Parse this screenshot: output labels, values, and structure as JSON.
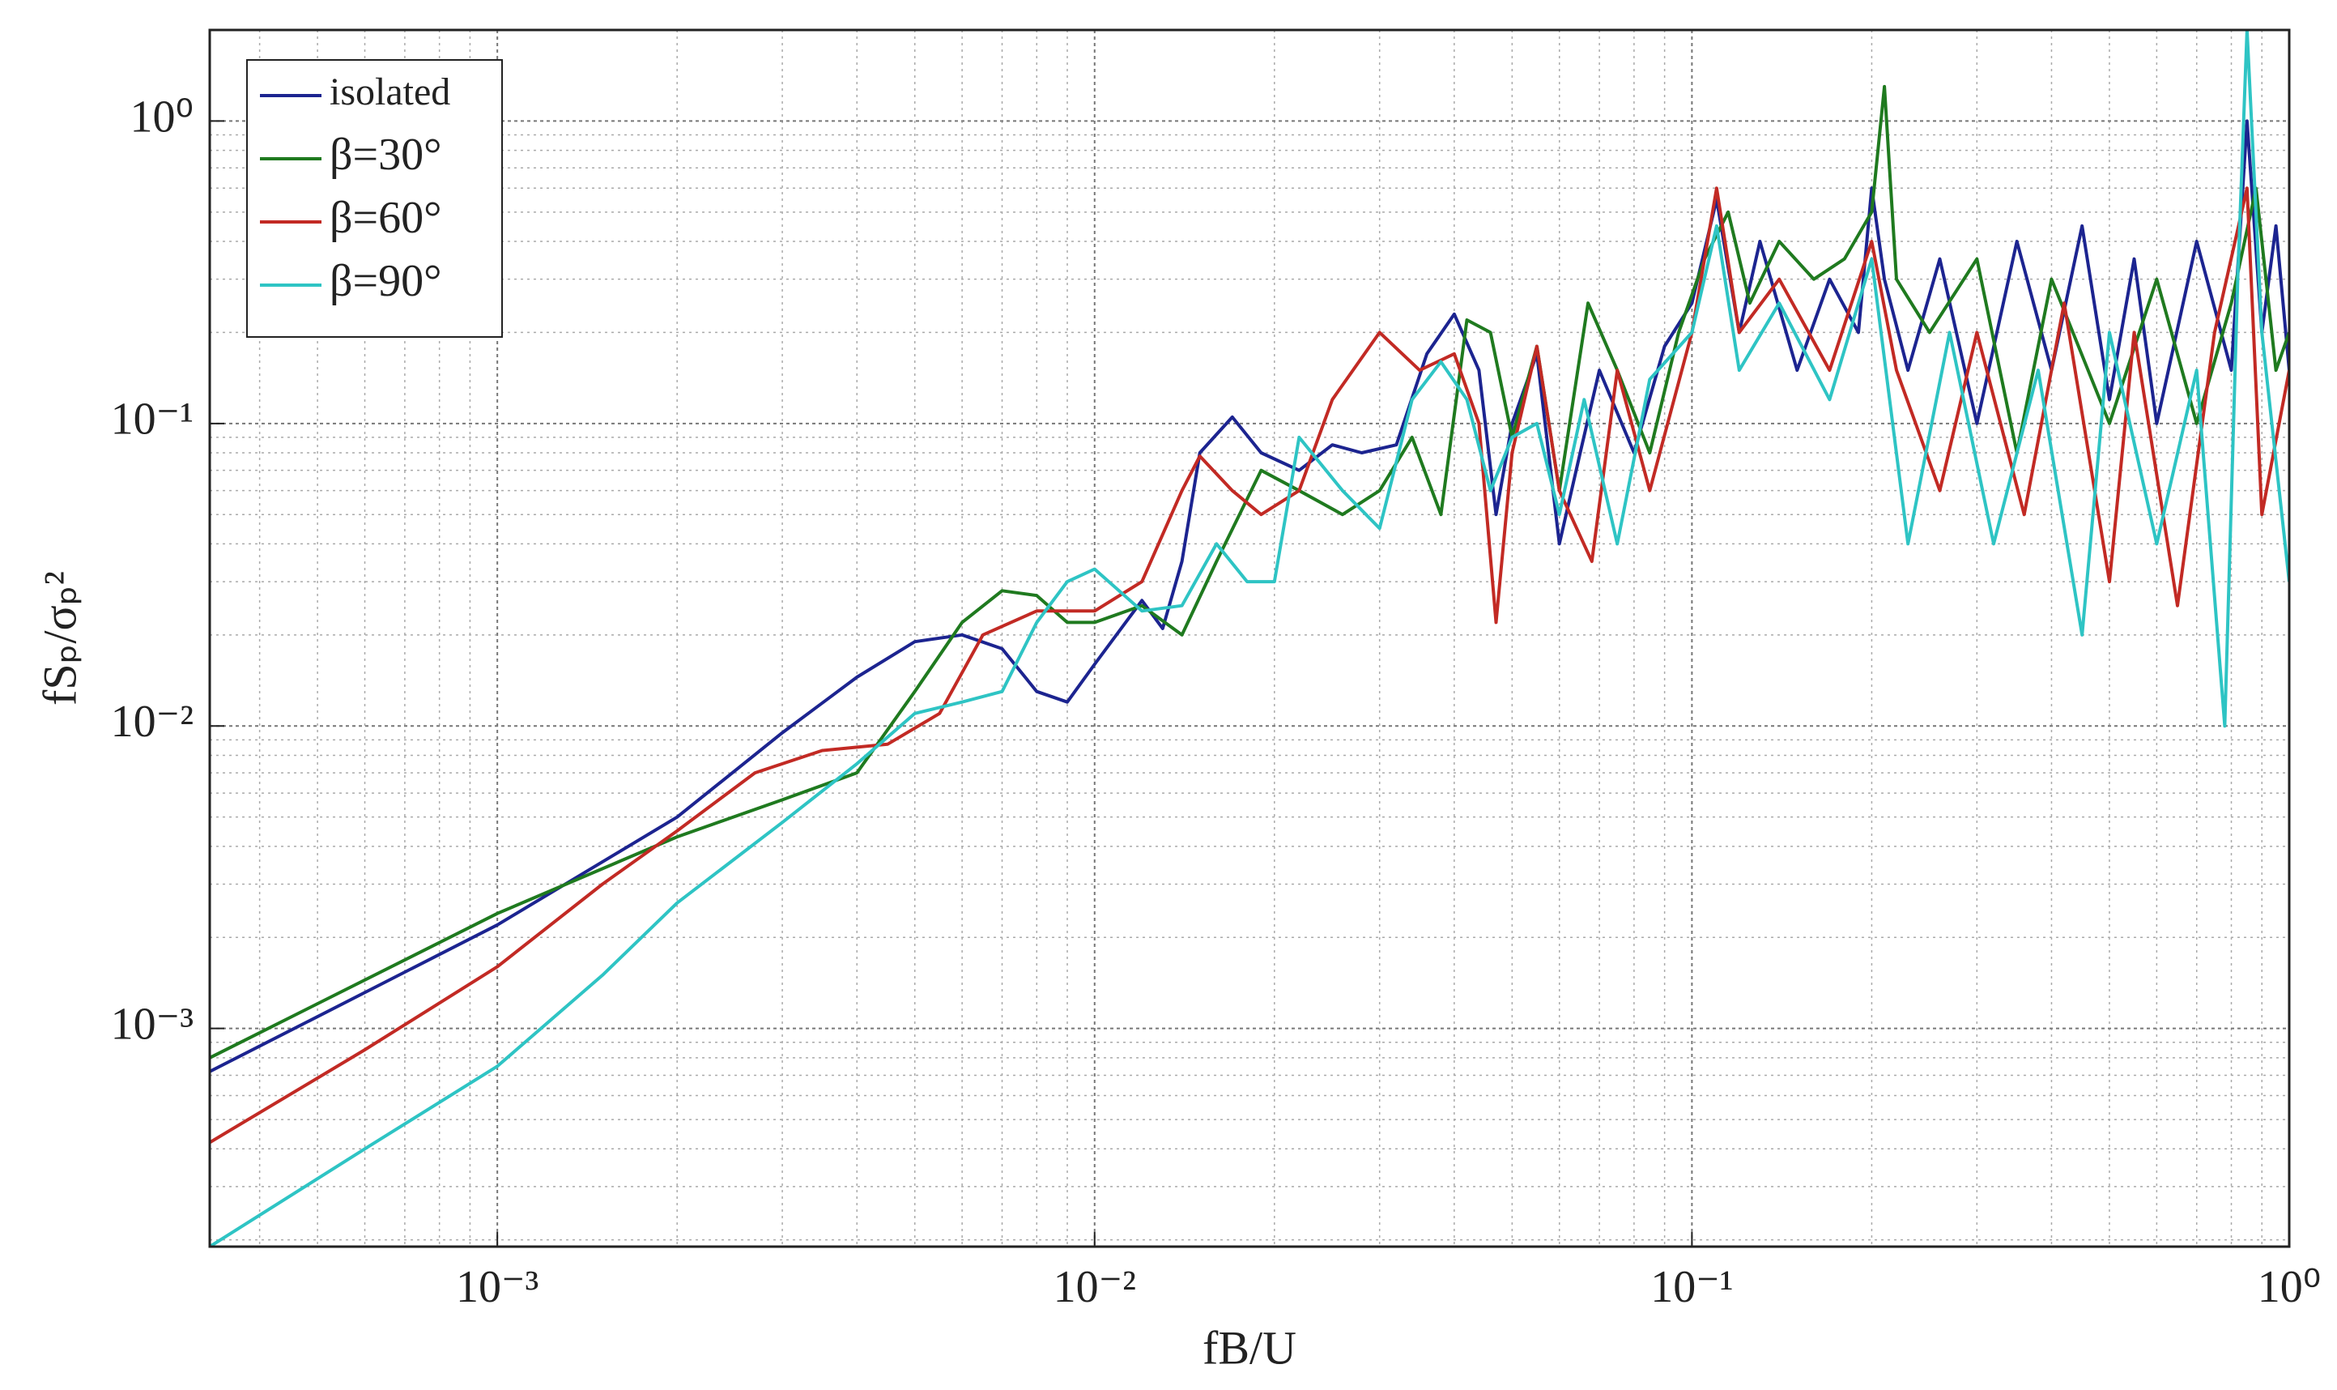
{
  "chart_data": {
    "type": "line",
    "xlabel": "fB/U",
    "ylabel": "fSₚ/σₚ²",
    "xscale": "log",
    "yscale": "log",
    "xlim": [
      0.00033,
      1
    ],
    "ylim": [
      0.00019,
      2
    ],
    "xticks": [
      {
        "value": 0.001,
        "label": "10⁻³"
      },
      {
        "value": 0.01,
        "label": "10⁻²"
      },
      {
        "value": 0.1,
        "label": "10⁻¹"
      },
      {
        "value": 1,
        "label": "10⁰"
      }
    ],
    "yticks": [
      {
        "value": 0.001,
        "label": "10⁻³"
      },
      {
        "value": 0.01,
        "label": "10⁻²"
      },
      {
        "value": 0.1,
        "label": "10⁻¹"
      },
      {
        "value": 1,
        "label": "10⁰"
      }
    ],
    "grid": true,
    "minor_grid": true,
    "legend": "upper left",
    "series": [
      {
        "name": "isolated",
        "color": "#1c2490",
        "x": [
          0.00033,
          0.001,
          0.002,
          0.003,
          0.004,
          0.005,
          0.006,
          0.007,
          0.008,
          0.009,
          0.01,
          0.012,
          0.013,
          0.014,
          0.015,
          0.017,
          0.019,
          0.022,
          0.025,
          0.028,
          0.032,
          0.036,
          0.04,
          0.044,
          0.047,
          0.05,
          0.055,
          0.06,
          0.065,
          0.07,
          0.08,
          0.09,
          0.1,
          0.11,
          0.12,
          0.13,
          0.15,
          0.17,
          0.19,
          0.2,
          0.21,
          0.23,
          0.26,
          0.3,
          0.35,
          0.4,
          0.45,
          0.5,
          0.55,
          0.6,
          0.7,
          0.8,
          0.85,
          0.9,
          0.95,
          1.0
        ],
        "values": [
          0.00072,
          0.0022,
          0.005,
          0.0095,
          0.0145,
          0.019,
          0.02,
          0.018,
          0.013,
          0.012,
          0.016,
          0.026,
          0.021,
          0.035,
          0.08,
          0.105,
          0.08,
          0.07,
          0.085,
          0.08,
          0.085,
          0.17,
          0.23,
          0.15,
          0.05,
          0.1,
          0.17,
          0.04,
          0.08,
          0.15,
          0.08,
          0.18,
          0.25,
          0.55,
          0.2,
          0.4,
          0.15,
          0.3,
          0.2,
          0.6,
          0.3,
          0.15,
          0.35,
          0.1,
          0.4,
          0.15,
          0.45,
          0.12,
          0.35,
          0.1,
          0.4,
          0.15,
          1.0,
          0.2,
          0.45,
          0.15
        ]
      },
      {
        "name": "β=30°",
        "color": "#1f7a1f",
        "x": [
          0.00033,
          0.001,
          0.002,
          0.003,
          0.004,
          0.005,
          0.006,
          0.007,
          0.008,
          0.009,
          0.01,
          0.012,
          0.014,
          0.016,
          0.019,
          0.022,
          0.026,
          0.03,
          0.034,
          0.038,
          0.042,
          0.046,
          0.05,
          0.055,
          0.06,
          0.067,
          0.075,
          0.085,
          0.095,
          0.105,
          0.115,
          0.125,
          0.14,
          0.16,
          0.18,
          0.2,
          0.21,
          0.22,
          0.25,
          0.3,
          0.35,
          0.4,
          0.5,
          0.6,
          0.7,
          0.8,
          0.88,
          0.95,
          1.0
        ],
        "values": [
          0.0008,
          0.0024,
          0.0043,
          0.0057,
          0.007,
          0.013,
          0.022,
          0.028,
          0.027,
          0.022,
          0.022,
          0.025,
          0.02,
          0.035,
          0.07,
          0.06,
          0.05,
          0.06,
          0.09,
          0.05,
          0.22,
          0.2,
          0.09,
          0.18,
          0.06,
          0.25,
          0.15,
          0.08,
          0.2,
          0.35,
          0.5,
          0.25,
          0.4,
          0.3,
          0.35,
          0.5,
          1.3,
          0.3,
          0.2,
          0.35,
          0.08,
          0.3,
          0.1,
          0.3,
          0.1,
          0.25,
          0.6,
          0.15,
          0.2
        ]
      },
      {
        "name": "β=60°",
        "color": "#c22a24",
        "x": [
          0.00033,
          0.0006,
          0.001,
          0.0015,
          0.002,
          0.0027,
          0.0035,
          0.0045,
          0.0055,
          0.0065,
          0.008,
          0.01,
          0.012,
          0.014,
          0.015,
          0.017,
          0.019,
          0.022,
          0.025,
          0.03,
          0.035,
          0.04,
          0.044,
          0.047,
          0.05,
          0.055,
          0.06,
          0.068,
          0.075,
          0.085,
          0.1,
          0.11,
          0.12,
          0.14,
          0.17,
          0.2,
          0.22,
          0.26,
          0.3,
          0.36,
          0.42,
          0.5,
          0.55,
          0.65,
          0.75,
          0.85,
          0.9,
          1.0
        ],
        "values": [
          0.00042,
          0.00085,
          0.0016,
          0.003,
          0.0045,
          0.007,
          0.0083,
          0.0087,
          0.011,
          0.02,
          0.024,
          0.024,
          0.03,
          0.06,
          0.078,
          0.06,
          0.05,
          0.06,
          0.12,
          0.2,
          0.15,
          0.17,
          0.1,
          0.022,
          0.08,
          0.18,
          0.06,
          0.035,
          0.15,
          0.06,
          0.2,
          0.6,
          0.2,
          0.3,
          0.15,
          0.4,
          0.15,
          0.06,
          0.2,
          0.05,
          0.25,
          0.03,
          0.2,
          0.025,
          0.2,
          0.6,
          0.05,
          0.15
        ]
      },
      {
        "name": "β=90°",
        "color": "#2ec4c4",
        "x": [
          0.00033,
          0.0006,
          0.001,
          0.0015,
          0.002,
          0.003,
          0.004,
          0.005,
          0.006,
          0.007,
          0.008,
          0.009,
          0.01,
          0.012,
          0.014,
          0.016,
          0.018,
          0.02,
          0.022,
          0.026,
          0.03,
          0.034,
          0.038,
          0.042,
          0.046,
          0.05,
          0.055,
          0.06,
          0.066,
          0.075,
          0.085,
          0.1,
          0.11,
          0.12,
          0.14,
          0.17,
          0.2,
          0.23,
          0.27,
          0.32,
          0.38,
          0.45,
          0.5,
          0.6,
          0.7,
          0.78,
          0.82,
          0.85,
          0.9,
          1.0
        ],
        "values": [
          0.00019,
          0.0004,
          0.00075,
          0.0015,
          0.0026,
          0.0048,
          0.0075,
          0.011,
          0.012,
          0.013,
          0.022,
          0.03,
          0.033,
          0.024,
          0.025,
          0.04,
          0.03,
          0.03,
          0.09,
          0.06,
          0.045,
          0.12,
          0.16,
          0.12,
          0.06,
          0.09,
          0.1,
          0.05,
          0.12,
          0.04,
          0.14,
          0.2,
          0.45,
          0.15,
          0.25,
          0.12,
          0.35,
          0.04,
          0.2,
          0.04,
          0.15,
          0.02,
          0.2,
          0.04,
          0.15,
          0.01,
          0.3,
          2.0,
          0.2,
          0.03
        ]
      }
    ]
  }
}
